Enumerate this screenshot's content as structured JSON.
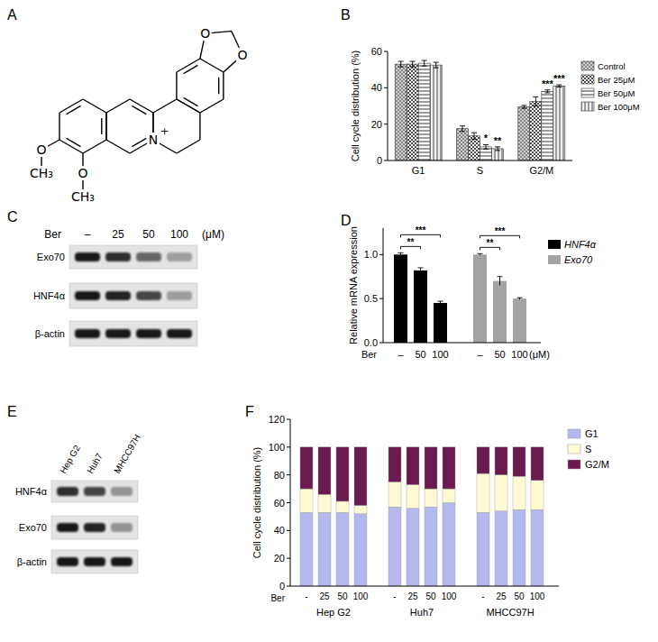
{
  "panel_labels": [
    "A",
    "B",
    "C",
    "D",
    "E",
    "F"
  ],
  "structure": {
    "oxygen": "O",
    "nitrogen": "N",
    "charge": "+",
    "methyl": "CH₃"
  },
  "blots": [
    {
      "treatment_label": "Ber",
      "lanes": [
        "–",
        "25",
        "50",
        "100"
      ],
      "unit": "(μM)",
      "rows": [
        {
          "name": "Exo70",
          "bands": [
            0.95,
            0.85,
            0.6,
            0.3
          ]
        },
        {
          "name": "HNF4α",
          "bands": [
            0.95,
            0.9,
            0.75,
            0.35
          ]
        },
        {
          "name": "β-actin",
          "bands": [
            0.95,
            0.95,
            0.95,
            0.95
          ]
        }
      ]
    },
    {
      "lanes": [
        "Hep G2",
        "Huh7",
        "MHCC97H"
      ],
      "rows": [
        {
          "name": "HNF4α",
          "bands": [
            0.85,
            0.75,
            0.4
          ]
        },
        {
          "name": "Exo70",
          "bands": [
            0.95,
            0.9,
            0.4
          ]
        },
        {
          "name": "β-actin",
          "bands": [
            0.95,
            0.95,
            0.95
          ]
        }
      ]
    }
  ],
  "chart_data": [
    {
      "type": "bar",
      "y_label": "Cell cycle distribution (%)",
      "categories": [
        "G1",
        "S",
        "G2/M"
      ],
      "series": [
        {
          "name": "Control",
          "color": "#cfcfcf",
          "values": [
            53,
            17.5,
            29.5
          ],
          "errors": [
            1.5,
            1.5,
            0.8
          ]
        },
        {
          "name": "Ber 25μM",
          "color": "#4d4d4d",
          "values": [
            53,
            13.5,
            32.5
          ],
          "errors": [
            1.5,
            1.8,
            2.5
          ]
        },
        {
          "name": "Ber 50μM",
          "color": "#ffffff",
          "values": [
            53.5,
            7.5,
            38
          ],
          "errors": [
            1.5,
            1.2,
            0.8
          ],
          "significance": [
            null,
            "*",
            "***"
          ]
        },
        {
          "name": "Ber 100μM",
          "color": "#f0f0f0",
          "values": [
            52.5,
            6.5,
            41
          ],
          "errors": [
            1.5,
            1,
            0.6
          ],
          "significance": [
            null,
            "**",
            "***"
          ]
        }
      ],
      "ylim": [
        0,
        60
      ],
      "yticks": [
        0,
        20,
        40,
        60
      ],
      "legend": "right"
    },
    {
      "type": "bar",
      "y_label": "Relative mRNA expression",
      "x_label": "Ber",
      "x_unit": "(μM)",
      "categories": [
        "–",
        "50",
        "100"
      ],
      "series": [
        {
          "name": "HNF4α",
          "color": "#000000",
          "values": [
            1.0,
            0.82,
            0.45
          ],
          "errors": [
            0.02,
            0.03,
            0.02
          ],
          "significance": [
            null,
            "**",
            "***"
          ]
        },
        {
          "name": "Exo70",
          "color": "#a3a3a3",
          "values": [
            1.0,
            0.7,
            0.5
          ],
          "errors": [
            0.01,
            0.05,
            0.01
          ],
          "significance": [
            null,
            "**",
            "***"
          ]
        }
      ],
      "ylim": [
        0,
        1.3
      ],
      "yticks": [
        {
          "value": 0,
          "label": "0.0"
        },
        {
          "value": 0.5,
          "label": "0.5"
        },
        {
          "value": 1,
          "label": "1.0"
        }
      ],
      "legend": "upper right"
    },
    {
      "type": "bar",
      "stacked": true,
      "y_label": "Cell cycle distribution (%)",
      "x_label": "Ber",
      "categories": [
        "-",
        "25",
        "50",
        "100",
        "-",
        "25",
        "50",
        "100",
        "-",
        "25",
        "50",
        "100"
      ],
      "groups": [
        "Hep G2",
        "Huh7",
        "MHCC97H"
      ],
      "series": [
        {
          "name": "G1",
          "color": "#b4b8ec",
          "values": [
            53,
            53,
            53,
            52,
            57,
            56,
            57,
            60,
            53,
            54,
            55,
            55
          ]
        },
        {
          "name": "S",
          "color": "#fdfad4",
          "values": [
            17,
            13,
            8,
            6,
            18,
            17,
            13,
            10,
            28,
            26,
            24,
            21
          ]
        },
        {
          "name": "G2/M",
          "color": "#6b1a4f",
          "values": [
            30,
            34,
            39,
            42,
            25,
            27,
            30,
            30,
            19,
            20,
            21,
            24
          ]
        }
      ],
      "ylim": [
        0,
        120
      ],
      "yticks": [
        0,
        20,
        40,
        60,
        80,
        100,
        120
      ],
      "legend": "right"
    }
  ]
}
